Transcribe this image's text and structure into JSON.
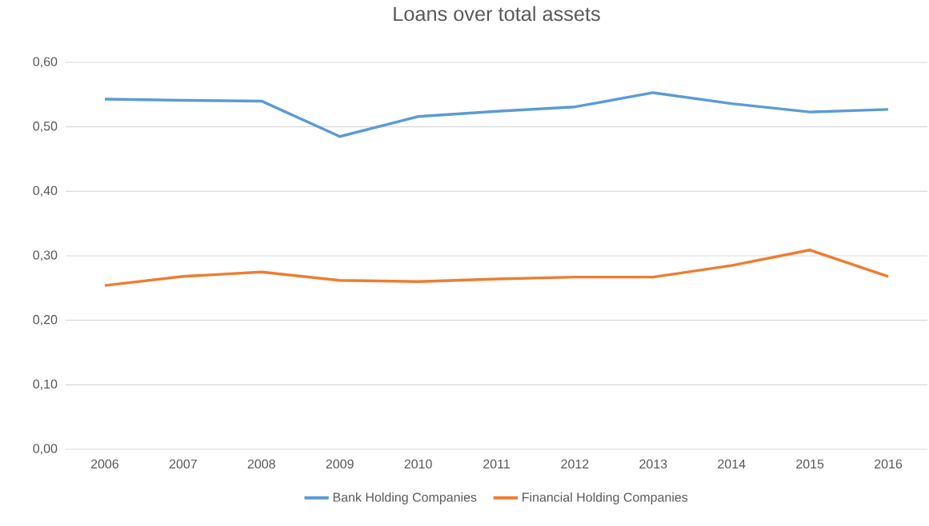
{
  "chart_data": {
    "type": "line",
    "title": "Loans over total assets",
    "categories": [
      "2006",
      "2007",
      "2008",
      "2009",
      "2010",
      "2011",
      "2012",
      "2013",
      "2014",
      "2015",
      "2016"
    ],
    "series": [
      {
        "name": "Bank Holding Companies",
        "color": "#5b9bd5",
        "values": [
          0.543,
          0.541,
          0.54,
          0.485,
          0.516,
          0.524,
          0.531,
          0.553,
          0.536,
          0.523,
          0.527
        ]
      },
      {
        "name": "Financial Holding Companies",
        "color": "#ed7d31",
        "values": [
          0.254,
          0.268,
          0.275,
          0.262,
          0.26,
          0.264,
          0.267,
          0.267,
          0.285,
          0.309,
          0.268
        ]
      }
    ],
    "ylim": [
      0,
      0.6
    ],
    "yticks": [
      {
        "value": 0,
        "label": "0,00"
      },
      {
        "value": 0.1,
        "label": "0,10"
      },
      {
        "value": 0.2,
        "label": "0,20"
      },
      {
        "value": 0.3,
        "label": "0,30"
      },
      {
        "value": 0.4,
        "label": "0,40"
      },
      {
        "value": 0.5,
        "label": "0,50"
      },
      {
        "value": 0.6,
        "label": "0,60"
      }
    ],
    "grid": "y",
    "legend": "bottom",
    "marker": "none",
    "line_style": "solid"
  }
}
